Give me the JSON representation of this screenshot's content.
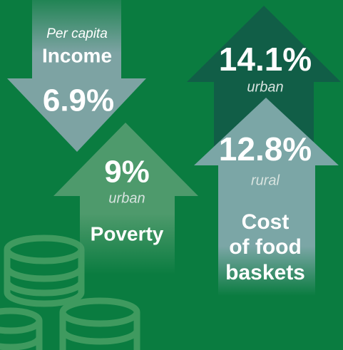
{
  "income": {
    "subtitle": "Per capita",
    "label": "Income",
    "value": "6.9%"
  },
  "poverty": {
    "value": "9%",
    "scope": "urban",
    "label": "Poverty"
  },
  "food_baskets": {
    "urban_value": "14.1%",
    "urban_scope": "urban",
    "rural_value": "12.8%",
    "rural_scope": "rural",
    "label_lines": [
      "Cost",
      "of food",
      "baskets"
    ]
  }
}
